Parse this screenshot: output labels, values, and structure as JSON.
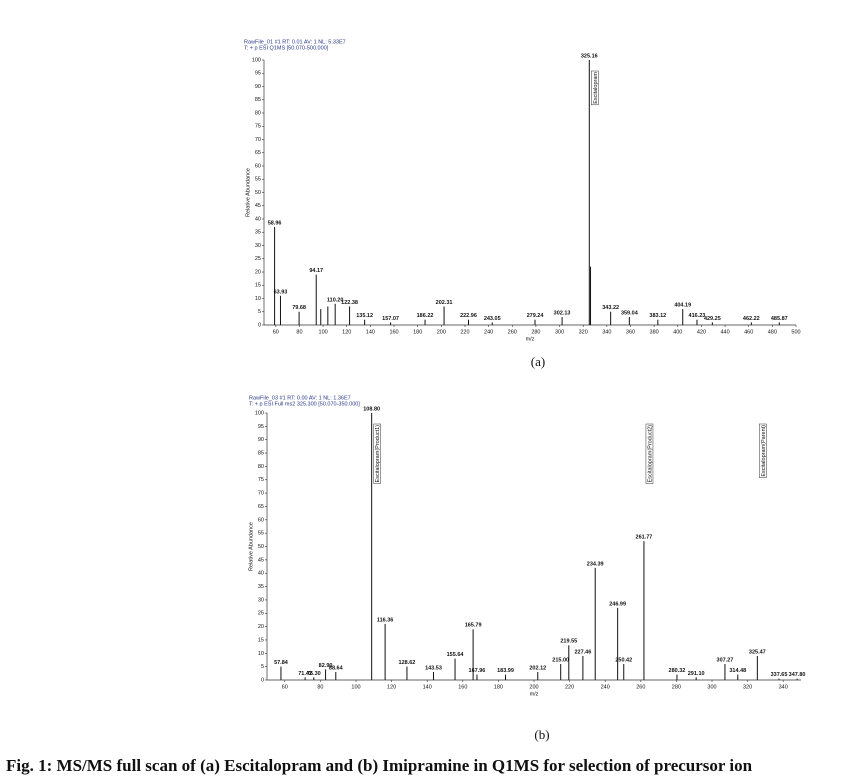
{
  "caption": "Fig. 1: MS/MS full scan of (a) Escitalopram and (b) Imipramine in Q1MS for selection of precursor ion",
  "chart_data": [
    {
      "type": "bar",
      "label": "(a)",
      "header": [
        "RawFile_01 #1  RT: 0.01  AV: 1  NL: 5.33E7",
        "T: + p ESI Q1MS [50.070-500.000]"
      ],
      "x_label": "m/z",
      "y_label": "Relative Abundance",
      "color": "#111111",
      "xlim": [
        50,
        500
      ],
      "ylim": [
        0,
        100
      ],
      "xticks": [
        60,
        80,
        100,
        120,
        140,
        160,
        180,
        200,
        220,
        240,
        260,
        280,
        300,
        320,
        340,
        360,
        380,
        400,
        420,
        440,
        460,
        480,
        500
      ],
      "yticks": [
        0,
        5,
        10,
        15,
        20,
        25,
        30,
        35,
        40,
        45,
        50,
        55,
        60,
        65,
        70,
        75,
        80,
        85,
        90,
        95,
        100
      ],
      "x": [
        58.96,
        63.93,
        79.68,
        94.17,
        98.0,
        104.0,
        110.2,
        122.38,
        135.12,
        157.07,
        186.22,
        202.31,
        222.96,
        243.05,
        279.24,
        302.13,
        325.16,
        326.2,
        343.22,
        359.04,
        383.12,
        404.19,
        416.23,
        429.25,
        462.22,
        485.87
      ],
      "x_labels": [
        "58.96",
        "63.93",
        "79.68",
        "94.17",
        null,
        null,
        "110.20",
        "122.38",
        "135.12",
        "157.07",
        "186.22",
        "202.31",
        "222.96",
        "243.05",
        "279.24",
        "302.13",
        "325.16",
        null,
        "343.22",
        "359.04",
        "383.12",
        "404.19",
        "416.23",
        "429.25",
        "462.22",
        "485.87"
      ],
      "values": [
        37,
        11,
        5,
        19,
        6,
        7,
        8,
        7,
        2,
        1,
        2,
        7,
        2,
        1,
        2,
        3,
        100,
        22,
        5,
        3,
        2,
        6,
        2,
        1,
        1,
        1
      ],
      "annotations": [
        {
          "text": "Escitalopram",
          "x": 325.16
        }
      ]
    },
    {
      "type": "bar",
      "label": "(b)",
      "header": [
        "RawFile_03 #1  RT: 0.00  AV: 1  NL: 1.36E7",
        "T: + p ESI Full ms2 325.300 [50.070-350.000]"
      ],
      "x_label": "m/z",
      "y_label": "Relative Abundance",
      "color": "#111111",
      "xlim": [
        50,
        350
      ],
      "ylim": [
        0,
        100
      ],
      "xticks": [
        60,
        80,
        100,
        120,
        140,
        160,
        180,
        200,
        220,
        240,
        260,
        280,
        300,
        320,
        340
      ],
      "yticks": [
        0,
        5,
        10,
        15,
        20,
        25,
        30,
        35,
        40,
        45,
        50,
        55,
        60,
        65,
        70,
        75,
        80,
        85,
        90,
        95,
        100
      ],
      "x": [
        57.84,
        71.42,
        76.3,
        82.9,
        88.64,
        108.8,
        116.36,
        128.62,
        143.53,
        155.64,
        165.79,
        167.96,
        183.99,
        202.12,
        215.0,
        219.55,
        227.46,
        234.39,
        246.99,
        250.42,
        261.77,
        280.32,
        291.1,
        307.27,
        314.48,
        325.47,
        337.65,
        347.8
      ],
      "x_labels": [
        "57.84",
        "71.42",
        "76.30",
        "82.90",
        "88.64",
        "108.80",
        "116.36",
        "128.62",
        "143.53",
        "155.64",
        "165.79",
        "167.96",
        "183.99",
        "202.12",
        "215.00",
        "219.55",
        "227.46",
        "234.39",
        "246.99",
        "250.42",
        "261.77",
        "280.32",
        "291.10",
        "307.27",
        "314.48",
        "325.47",
        "337.65",
        "347.80"
      ],
      "values": [
        5,
        1,
        1,
        4,
        3,
        100,
        21,
        5,
        3,
        8,
        19,
        2,
        2,
        3,
        6,
        13,
        9,
        42,
        27,
        6,
        52,
        2,
        1,
        6,
        2,
        9,
        0.5,
        0.5
      ],
      "annotations": [
        {
          "text": "Escitalopram(Product1)",
          "x": 108.8
        },
        {
          "text": "Escitalopram(Product2)",
          "x": 261.77
        },
        {
          "text": "Escitalopram(Parent)",
          "x": 325.47
        }
      ]
    }
  ]
}
